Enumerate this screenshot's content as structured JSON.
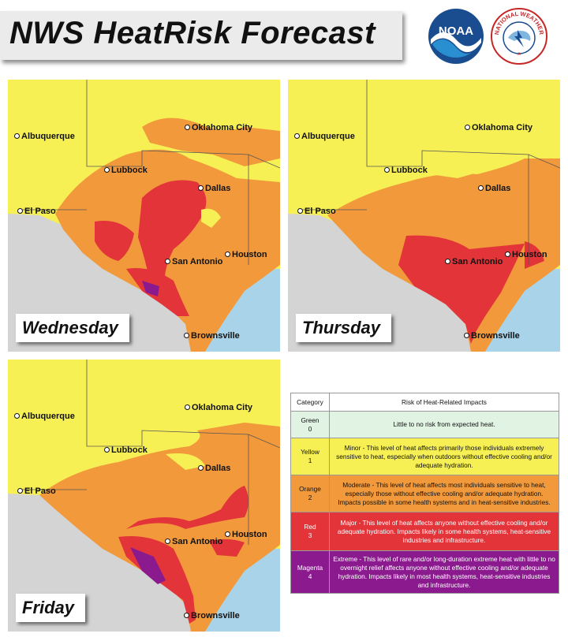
{
  "title": "NWS HeatRisk Forecast",
  "logos": {
    "noaa": "NOAA",
    "nws_lettering": "NATIONAL WEATHER SERVICE"
  },
  "colors": {
    "gray_nodata": "#d4d4d4",
    "water": "#a9d3e8",
    "yellow": "#f6f055",
    "orange": "#f29a3b",
    "red": "#e3343a",
    "magenta": "#8a1a8e",
    "green": "#e1f3e3"
  },
  "maps": [
    {
      "day": "Wednesday",
      "cities": [
        "Albuquerque",
        "Oklahoma City",
        "Lubbock",
        "Dallas",
        "El Paso",
        "San Antonio",
        "Houston",
        "Brownsville"
      ]
    },
    {
      "day": "Thursday",
      "cities": [
        "Albuquerque",
        "Oklahoma City",
        "Lubbock",
        "Dallas",
        "El Paso",
        "San Antonio",
        "Houston",
        "Brownsville"
      ]
    },
    {
      "day": "Friday",
      "cities": [
        "Albuquerque",
        "Oklahoma City",
        "Lubbock",
        "Dallas",
        "El Paso",
        "San Antonio",
        "Houston",
        "Brownsville"
      ]
    }
  ],
  "legend": {
    "header_category": "Category",
    "header_impacts": "Risk of Heat-Related Impacts",
    "rows": [
      {
        "name": "Green",
        "level": "0",
        "color": "#e1f3e3",
        "text": "Little to no risk from expected heat."
      },
      {
        "name": "Yellow",
        "level": "1",
        "color": "#f6f055",
        "text": "Minor - This level of heat affects primarily those individuals extremely sensitive to heat, especially when outdoors without effective cooling and/or adequate hydration."
      },
      {
        "name": "Orange",
        "level": "2",
        "color": "#f29a3b",
        "text": "Moderate - This level of heat affects most individuals sensitive to heat, especially those without effective cooling and/or adequate hydration. Impacts possible in some health systems and in heat-sensitive industries."
      },
      {
        "name": "Red",
        "level": "3",
        "color": "#e3343a",
        "text": "Major - This level of heat affects anyone without effective cooling and/or adequate hydration. Impacts likely in some health systems, heat-sensitive industries and infrastructure."
      },
      {
        "name": "Magenta",
        "level": "4",
        "color": "#8a1a8e",
        "text": "Extreme - This level of rare and/or long-duration extreme heat with little to no overnight relief affects anyone without effective cooling and/or adequate hydration. Impacts likely in most health systems, heat-sensitive industries and infrastructure."
      }
    ]
  }
}
